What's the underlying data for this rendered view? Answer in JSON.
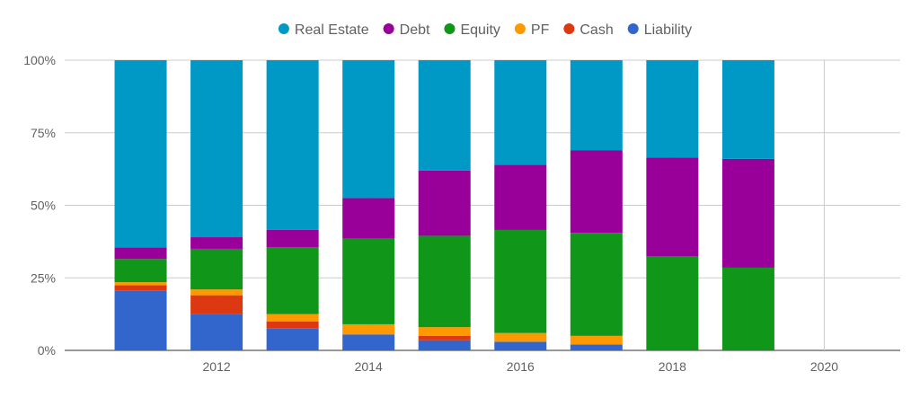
{
  "chart_data": {
    "type": "bar",
    "stacked": true,
    "percent_stacked": true,
    "categories": [
      "2011",
      "2012",
      "2013",
      "2014",
      "2015",
      "2016",
      "2017",
      "2018",
      "2019"
    ],
    "x_ticks": [
      "2012",
      "2014",
      "2016",
      "2018",
      "2020"
    ],
    "x_range": [
      2010,
      2021
    ],
    "ylim": [
      0,
      100
    ],
    "y_ticks": [
      "0%",
      "25%",
      "50%",
      "75%",
      "100%"
    ],
    "legend_position": "top-center",
    "grid": true,
    "series": [
      {
        "name": "Liability",
        "color": "#3366cc",
        "values": [
          20.5,
          12.5,
          7.5,
          5.5,
          3.5,
          3.0,
          2.0,
          0.0,
          0.0
        ]
      },
      {
        "name": "Cash",
        "color": "#dc3912",
        "values": [
          2.0,
          6.5,
          2.5,
          0.0,
          1.5,
          0.0,
          0.0,
          0.0,
          0.0
        ]
      },
      {
        "name": "PF",
        "color": "#ff9900",
        "values": [
          1.0,
          2.0,
          2.5,
          3.5,
          3.0,
          3.0,
          3.0,
          0.0,
          0.0
        ]
      },
      {
        "name": "Equity",
        "color": "#109618",
        "values": [
          8.0,
          14.0,
          23.0,
          29.5,
          31.5,
          35.5,
          35.5,
          32.5,
          28.5
        ]
      },
      {
        "name": "Debt",
        "color": "#990099",
        "values": [
          4.0,
          4.0,
          6.0,
          14.0,
          22.5,
          22.5,
          28.5,
          34.0,
          37.5
        ]
      },
      {
        "name": "Real Estate",
        "color": "#0099c6",
        "values": [
          64.5,
          61.0,
          58.5,
          47.5,
          38.0,
          36.0,
          31.0,
          33.5,
          34.0
        ]
      }
    ],
    "legend_order": [
      "Real Estate",
      "Debt",
      "Equity",
      "PF",
      "Cash",
      "Liability"
    ]
  }
}
